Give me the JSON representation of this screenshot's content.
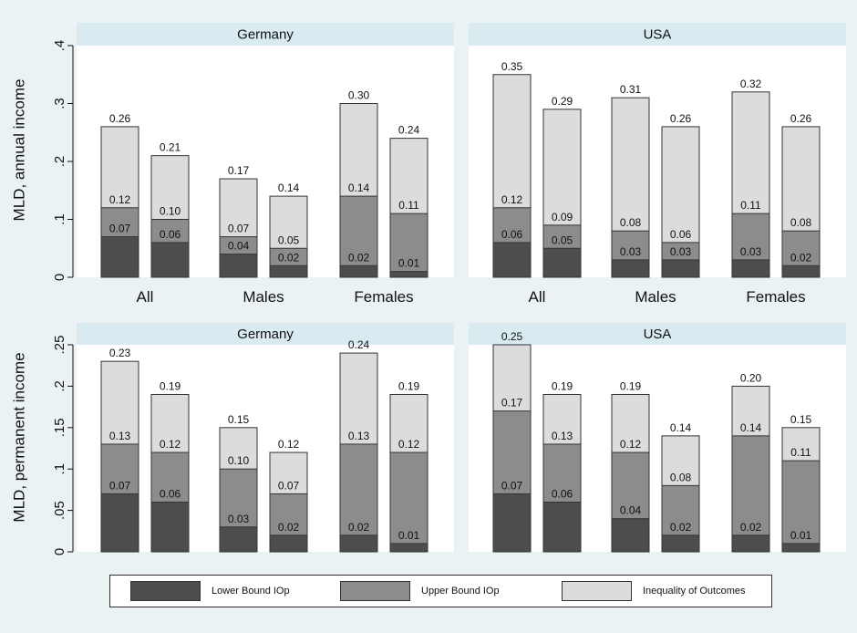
{
  "colors": {
    "background": "#eaf2f3",
    "plot_background": "#ffffff",
    "strip": "#d9eaf0",
    "lower": "#4d4d4d",
    "upper": "#8c8c8c",
    "outcomes": "#dcdcdc"
  },
  "legend": {
    "items": [
      {
        "label": "Lower Bound IOp",
        "color": "#4d4d4d"
      },
      {
        "label": "Upper Bound IOp",
        "color": "#8c8c8c"
      },
      {
        "label": "Inequality of Outcomes",
        "color": "#dcdcdc"
      }
    ]
  },
  "chart_data": [
    {
      "type": "bar",
      "stacked": true,
      "ylabel": "MLD, annual income",
      "ylim": [
        0,
        0.4
      ],
      "yticks": [
        0,
        0.1,
        0.2,
        0.3,
        0.4
      ],
      "ytick_labels": [
        "0",
        ".1",
        ".2",
        ".3",
        ".4"
      ],
      "panels": [
        {
          "title": "Germany",
          "groups": [
            {
              "label": "All",
              "bars": [
                {
                  "lower": 0.07,
                  "upper": 0.12,
                  "outcomes": 0.26
                },
                {
                  "lower": 0.06,
                  "upper": 0.1,
                  "outcomes": 0.21
                }
              ]
            },
            {
              "label": "Males",
              "bars": [
                {
                  "lower": 0.04,
                  "upper": 0.07,
                  "outcomes": 0.17
                },
                {
                  "lower": 0.02,
                  "upper": 0.05,
                  "outcomes": 0.14
                }
              ]
            },
            {
              "label": "Females",
              "bars": [
                {
                  "lower": 0.02,
                  "upper": 0.14,
                  "outcomes": 0.3
                },
                {
                  "lower": 0.01,
                  "upper": 0.11,
                  "outcomes": 0.24
                }
              ]
            }
          ]
        },
        {
          "title": "USA",
          "groups": [
            {
              "label": "All",
              "bars": [
                {
                  "lower": 0.06,
                  "upper": 0.12,
                  "outcomes": 0.35
                },
                {
                  "lower": 0.05,
                  "upper": 0.09,
                  "outcomes": 0.29
                }
              ]
            },
            {
              "label": "Males",
              "bars": [
                {
                  "lower": 0.03,
                  "upper": 0.08,
                  "outcomes": 0.31
                },
                {
                  "lower": 0.03,
                  "upper": 0.06,
                  "outcomes": 0.26
                }
              ]
            },
            {
              "label": "Females",
              "bars": [
                {
                  "lower": 0.03,
                  "upper": 0.11,
                  "outcomes": 0.32
                },
                {
                  "lower": 0.02,
                  "upper": 0.08,
                  "outcomes": 0.26
                }
              ]
            }
          ]
        }
      ]
    },
    {
      "type": "bar",
      "stacked": true,
      "ylabel": "MLD, permanent income",
      "ylim": [
        0,
        0.25
      ],
      "yticks": [
        0,
        0.05,
        0.1,
        0.15,
        0.2,
        0.25
      ],
      "ytick_labels": [
        "0",
        ".05",
        ".1",
        ".15",
        ".2",
        ".25"
      ],
      "panels": [
        {
          "title": "Germany",
          "groups": [
            {
              "label": "",
              "bars": [
                {
                  "lower": 0.07,
                  "upper": 0.13,
                  "outcomes": 0.23
                },
                {
                  "lower": 0.06,
                  "upper": 0.12,
                  "outcomes": 0.19
                }
              ]
            },
            {
              "label": "",
              "bars": [
                {
                  "lower": 0.03,
                  "upper": 0.1,
                  "outcomes": 0.15
                },
                {
                  "lower": 0.02,
                  "upper": 0.07,
                  "outcomes": 0.12
                }
              ]
            },
            {
              "label": "",
              "bars": [
                {
                  "lower": 0.02,
                  "upper": 0.13,
                  "outcomes": 0.24
                },
                {
                  "lower": 0.01,
                  "upper": 0.12,
                  "outcomes": 0.19
                }
              ]
            }
          ]
        },
        {
          "title": "USA",
          "groups": [
            {
              "label": "",
              "bars": [
                {
                  "lower": 0.07,
                  "upper": 0.17,
                  "outcomes": 0.25
                },
                {
                  "lower": 0.06,
                  "upper": 0.13,
                  "outcomes": 0.19
                }
              ]
            },
            {
              "label": "",
              "bars": [
                {
                  "lower": 0.04,
                  "upper": 0.12,
                  "outcomes": 0.19
                },
                {
                  "lower": 0.02,
                  "upper": 0.08,
                  "outcomes": 0.14
                }
              ]
            },
            {
              "label": "",
              "bars": [
                {
                  "lower": 0.02,
                  "upper": 0.14,
                  "outcomes": 0.2
                },
                {
                  "lower": 0.01,
                  "upper": 0.11,
                  "outcomes": 0.15
                }
              ]
            }
          ]
        }
      ]
    }
  ]
}
